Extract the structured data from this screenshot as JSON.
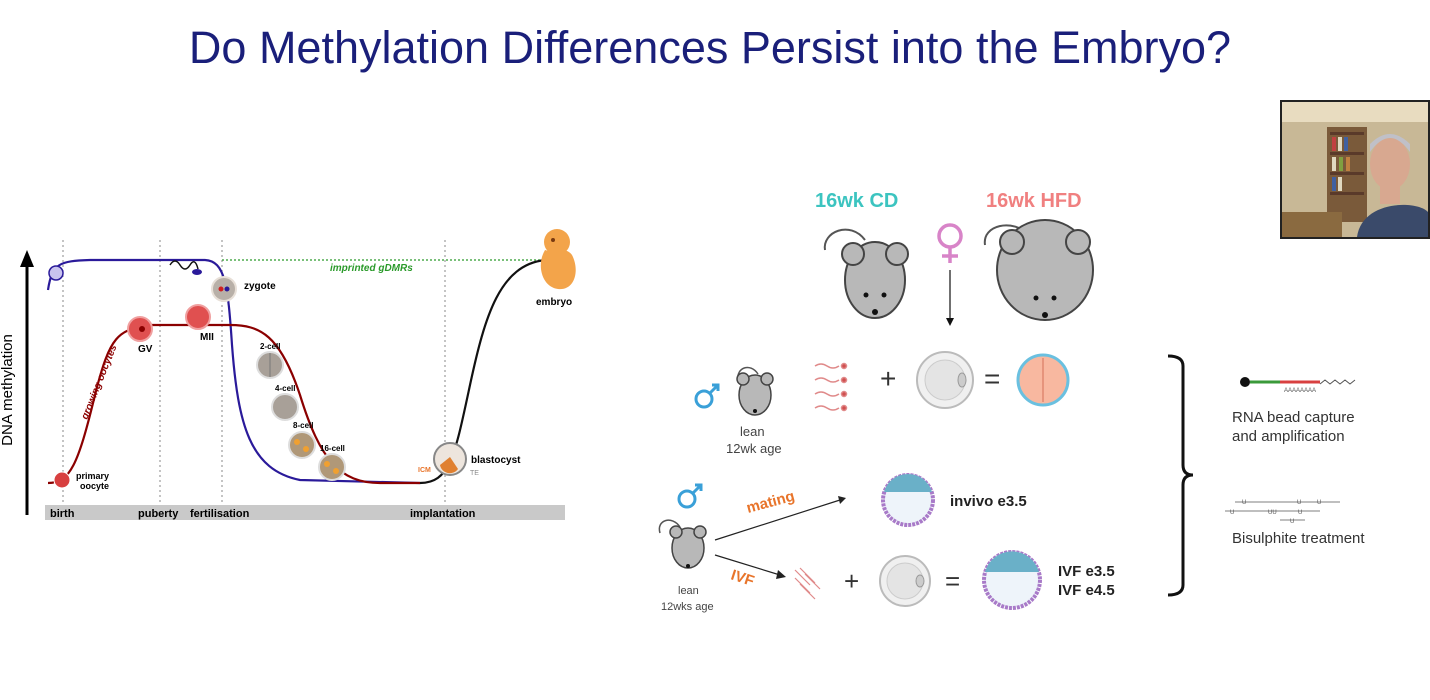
{
  "title": "Do Methylation Differences Persist into the Embryo?",
  "left_diagram": {
    "y_axis_label": "DNA methylation",
    "timeline": [
      "birth",
      "puberty",
      "fertilisation",
      "implantation"
    ],
    "stages": {
      "primary_oocyte": "primary oocyte",
      "gv": "GV",
      "mii": "MII",
      "zygote": "zygote",
      "cell2": "2-cell",
      "cell4": "4-cell",
      "cell8": "8-cell",
      "cell16": "16-cell",
      "blastocyst": "blastocyst",
      "icm": "ICM",
      "te": "TE",
      "embryo": "embryo"
    },
    "curve_labels": {
      "growing_oocytes": "growing oocytes",
      "imprinted": "imprinted gDMRs"
    }
  },
  "right_diagram": {
    "cd_label": "16wk CD",
    "hfd_label": "16wk HFD",
    "lean1_line1": "lean",
    "lean1_line2": "12wk age",
    "lean2_line1": "lean",
    "lean2_line2": "12wks age",
    "mating_label": "mating",
    "ivf_label": "IVF",
    "invivo_label": "invivo e3.5",
    "ivf_e35": "IVF e3.5",
    "ivf_e45": "IVF e4.5",
    "rna_line1": "RNA bead capture",
    "rna_line2": "and amplification",
    "bisulphite": "Bisulphite treatment"
  },
  "colors": {
    "title": "#1a1f7a",
    "cd": "#3cc4c0",
    "hfd": "#f08080",
    "arrow_orange": "#e8742a",
    "male_blue": "#3aa0d8",
    "female_pink": "#d884c8",
    "oocyte_curve": "#8b0000",
    "paternal_curve": "#2a1a9a",
    "imprint_green": "#2a9a2a"
  },
  "webcam": "presenter webcam"
}
